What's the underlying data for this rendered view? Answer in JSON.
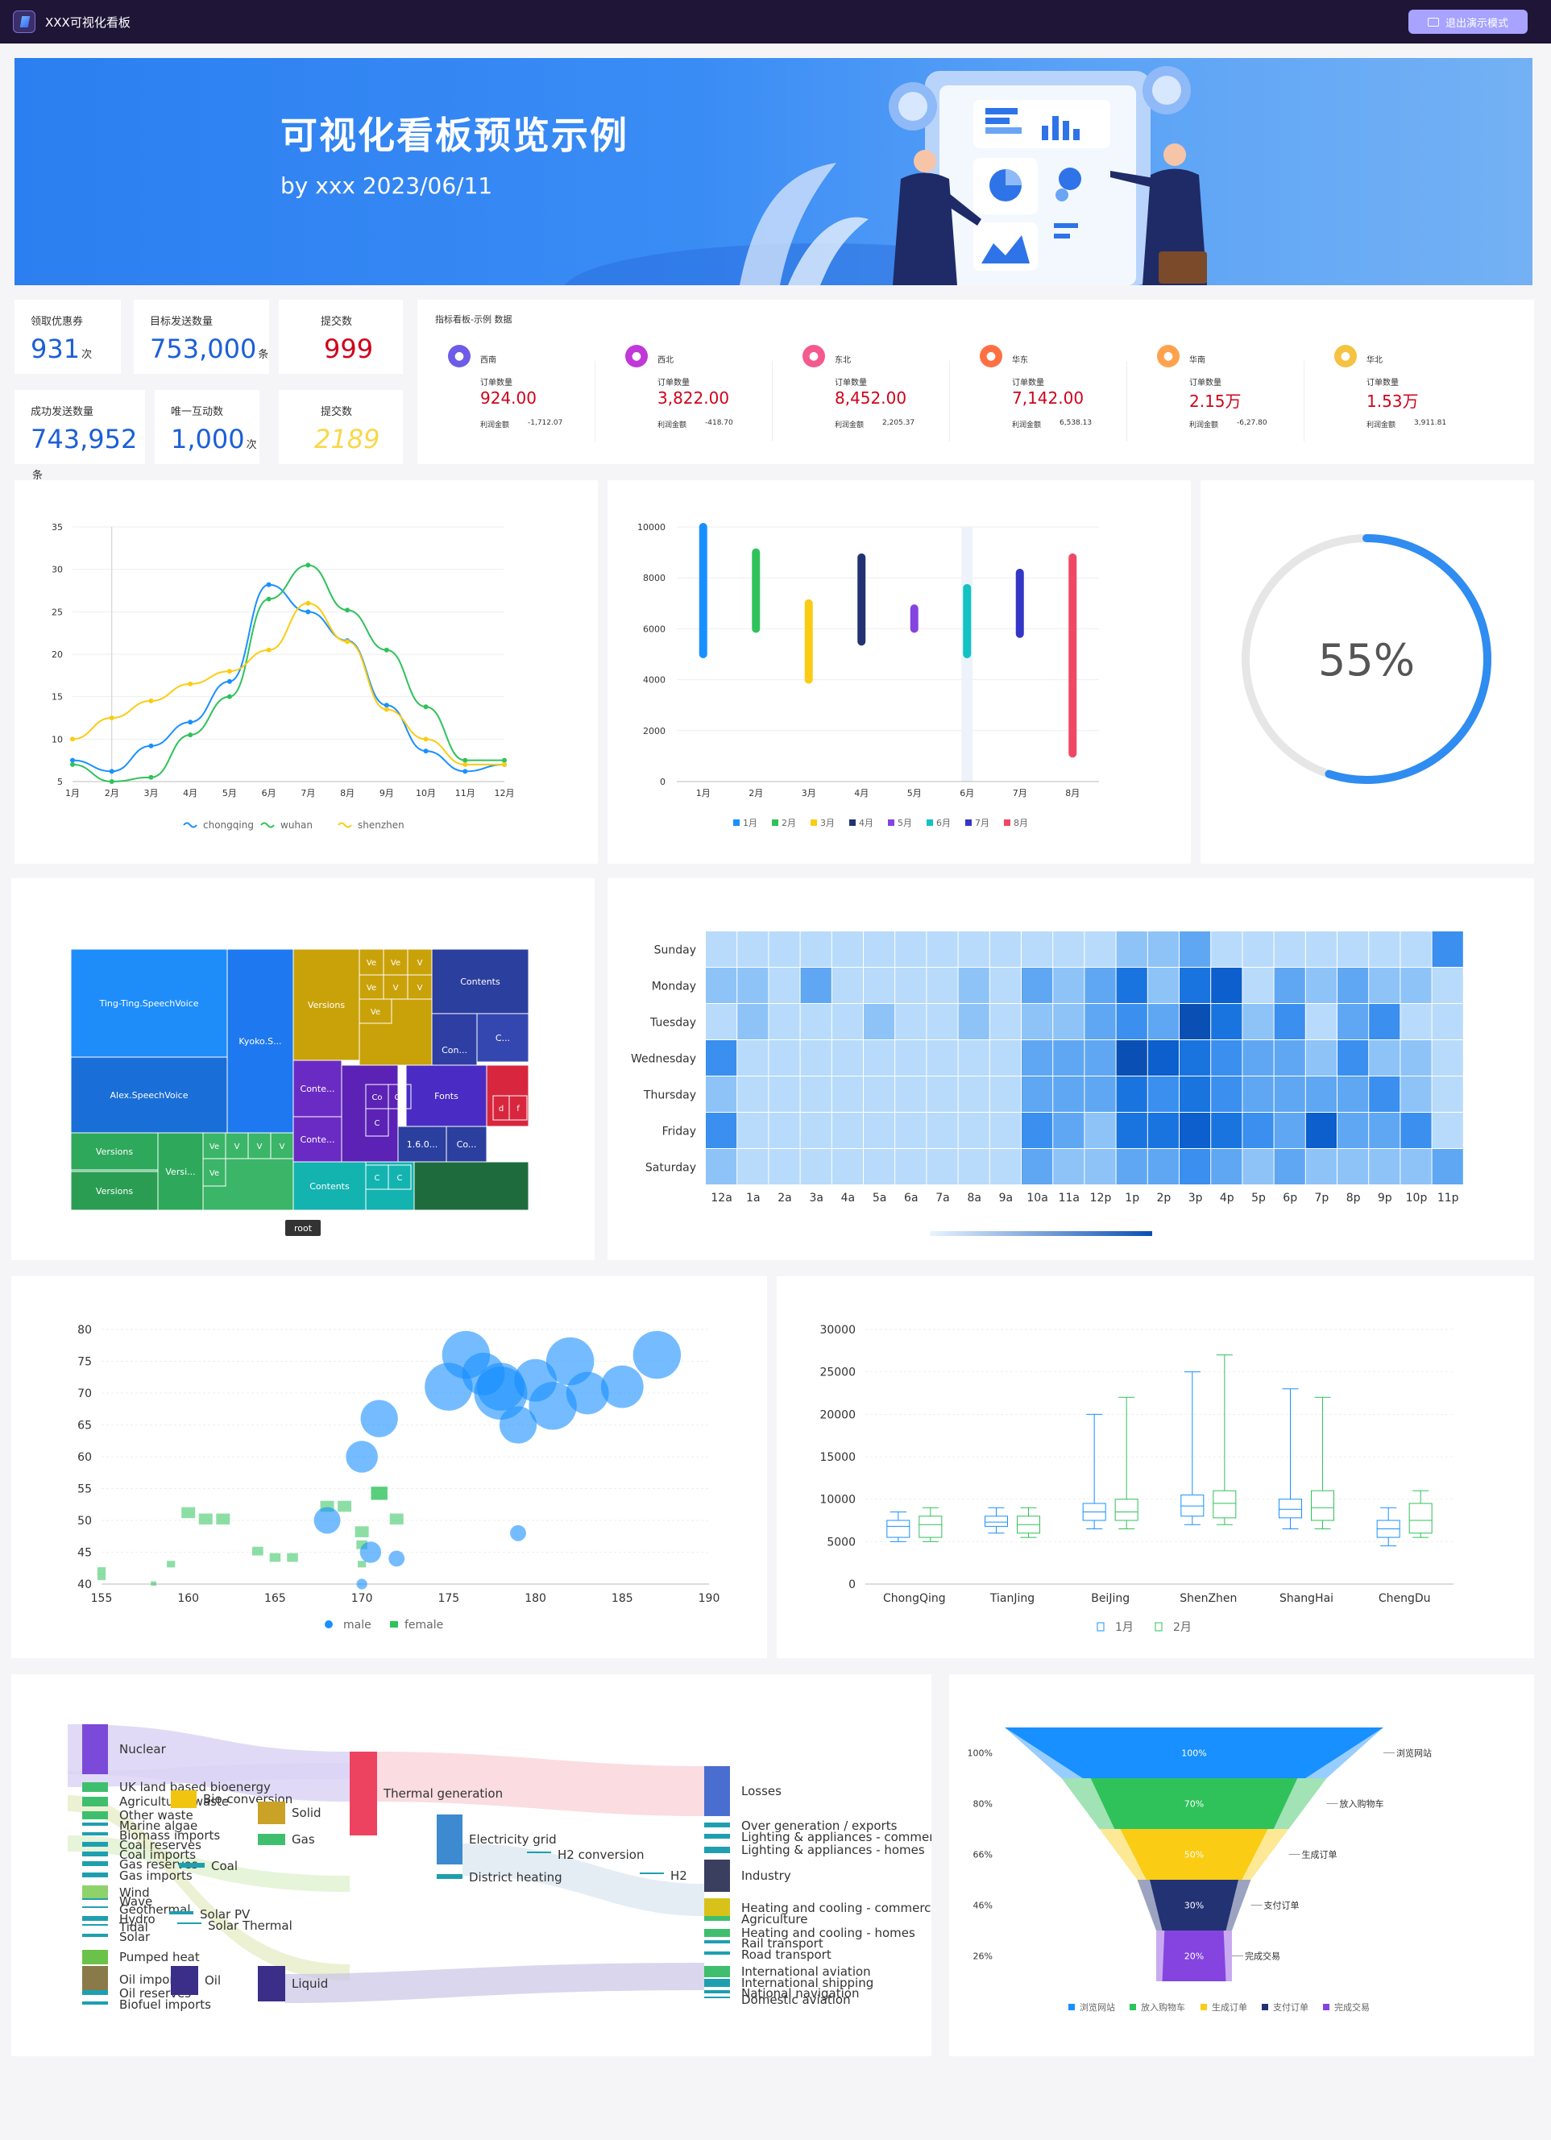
{
  "header": {
    "app_title": "XXX可视化看板",
    "exit_label": "退出演示模式"
  },
  "banner": {
    "title": "可视化看板预览示例",
    "subtitle": "by xxx 2023/06/11"
  },
  "metrics": [
    {
      "label": "领取优惠券",
      "value": "931",
      "unit": "次",
      "color": "#1c5fd8"
    },
    {
      "label": "目标发送数量",
      "value": "753,000",
      "unit": "条",
      "color": "#1c5fd8"
    },
    {
      "label": "提交数",
      "value": "999",
      "unit": "",
      "color": "#d0021b"
    },
    {
      "label": "成功发送数量",
      "value": "743,952",
      "unit": "条",
      "color": "#1c5fd8"
    },
    {
      "label": "唯一互动数",
      "value": "1,000",
      "unit": "次",
      "color": "#1c5fd8"
    },
    {
      "label": "提交数",
      "value": "2189",
      "unit": "",
      "color": "#f7d84a"
    }
  ],
  "regions_panel": {
    "title": "指标看板-示例 数据",
    "order_label": "订单数量",
    "profit_label": "利润金额",
    "items": [
      {
        "name": "西南",
        "orders": "924.00",
        "profit": "-1,712.07",
        "color": "#6c5ce7"
      },
      {
        "name": "西北",
        "orders": "3,822.00",
        "profit": "-418.70",
        "color": "#c039d8"
      },
      {
        "name": "东北",
        "orders": "8,452.00",
        "profit": "2,205.37",
        "color": "#f45a8d"
      },
      {
        "name": "华东",
        "orders": "7,142.00",
        "profit": "6,538.13",
        "color": "#ff7043"
      },
      {
        "name": "华南",
        "orders": "2.15万",
        "profit": "-6,27.80",
        "color": "#ffa24d"
      },
      {
        "name": "华北",
        "orders": "1.53万",
        "profit": "3,911.81",
        "color": "#f5c242"
      }
    ]
  },
  "chart_data": [
    {
      "type": "line",
      "categories": [
        "1月",
        "2月",
        "3月",
        "4月",
        "5月",
        "6月",
        "7月",
        "8月",
        "9月",
        "10月",
        "11月",
        "12月"
      ],
      "series": [
        {
          "name": "chongqing",
          "color": "#1890ff",
          "values": [
            7.5,
            6.2,
            9.2,
            12,
            16.8,
            28.2,
            25,
            21.6,
            14,
            8.6,
            6.2,
            7
          ]
        },
        {
          "name": "wuhan",
          "color": "#2fc25b",
          "values": [
            7,
            5,
            5.5,
            10.5,
            15,
            26.5,
            30.5,
            25.2,
            20.5,
            13.8,
            7.5,
            7.5
          ]
        },
        {
          "name": "shenzhen",
          "color": "#facc14",
          "values": [
            10,
            12.5,
            14.5,
            16.5,
            18,
            20.5,
            26,
            21.5,
            13.5,
            10,
            7,
            7
          ]
        }
      ],
      "ylim": [
        5,
        35
      ],
      "yticks": [
        "5",
        "10",
        "15",
        "20",
        "25",
        "30",
        "35"
      ]
    },
    {
      "type": "bar",
      "categories": [
        "1月",
        "2月",
        "3月",
        "4月",
        "5月",
        "6月",
        "7月",
        "8月"
      ],
      "ranges": [
        [
          5000,
          10000
        ],
        [
          6000,
          9000
        ],
        [
          4000,
          7000
        ],
        [
          5500,
          8800
        ],
        [
          6000,
          6800
        ],
        [
          5000,
          7600
        ],
        [
          5800,
          8200
        ],
        [
          1100,
          8800
        ]
      ],
      "colors": [
        "#1890ff",
        "#2fc25b",
        "#facc14",
        "#223273",
        "#8543e0",
        "#13c2c2",
        "#3436c7",
        "#f04864"
      ],
      "ylim": [
        0,
        10000
      ],
      "yticks": [
        "0",
        "2000",
        "4000",
        "6000",
        "8000",
        "10000"
      ]
    },
    {
      "type": "gauge",
      "value": 55,
      "label": "55%"
    },
    {
      "type": "treemap",
      "labels": [
        "Ting-Ting.SpeechVoice",
        "Kyoko.S...",
        "Alex.SpeechVoice",
        "Versions",
        "Versi...",
        "Ve",
        "Versions",
        "Versions",
        "Ve",
        "V",
        "Ve",
        "Contents",
        "Con...",
        "C...",
        "Conte...",
        "Co",
        "Co",
        "C",
        "Fonts",
        "d",
        "f",
        "Conte...",
        "1.6.0...",
        "Co...",
        "Contents",
        "C",
        "C"
      ],
      "root_label": "root"
    },
    {
      "type": "heatmap",
      "rows": [
        "Sunday",
        "Monday",
        "Tuesday",
        "Wednesday",
        "Thursday",
        "Friday",
        "Saturday"
      ],
      "columns": [
        "12a",
        "1a",
        "2a",
        "3a",
        "4a",
        "5a",
        "6a",
        "7a",
        "8a",
        "9a",
        "10a",
        "11a",
        "12p",
        "1p",
        "2p",
        "3p",
        "4p",
        "5p",
        "6p",
        "7p",
        "8p",
        "9p",
        "10p",
        "11p"
      ],
      "values": [
        [
          1,
          1,
          1,
          1,
          1,
          1,
          1,
          1,
          1,
          1,
          1,
          1,
          1,
          2,
          2,
          3,
          1,
          1,
          1,
          1,
          1,
          1,
          1,
          4
        ],
        [
          2,
          2,
          1,
          3,
          1,
          1,
          1,
          1,
          2,
          1,
          3,
          2,
          3,
          5,
          2,
          5,
          6,
          1,
          3,
          2,
          3,
          2,
          2,
          1
        ],
        [
          1,
          2,
          1,
          1,
          1,
          2,
          1,
          1,
          2,
          1,
          2,
          2,
          3,
          4,
          3,
          7,
          5,
          2,
          4,
          1,
          3,
          4,
          1,
          1
        ],
        [
          4,
          1,
          1,
          1,
          1,
          1,
          1,
          1,
          1,
          1,
          3,
          3,
          3,
          7,
          6,
          5,
          4,
          3,
          3,
          2,
          4,
          2,
          2,
          1
        ],
        [
          2,
          1,
          1,
          1,
          1,
          1,
          1,
          1,
          1,
          1,
          3,
          3,
          3,
          5,
          4,
          5,
          4,
          3,
          3,
          3,
          3,
          4,
          2,
          1
        ],
        [
          4,
          1,
          1,
          1,
          1,
          1,
          1,
          1,
          1,
          1,
          4,
          3,
          2,
          5,
          5,
          6,
          5,
          4,
          3,
          6,
          3,
          3,
          4,
          1
        ],
        [
          2,
          1,
          1,
          1,
          1,
          1,
          1,
          1,
          1,
          1,
          3,
          2,
          2,
          3,
          3,
          4,
          3,
          2,
          3,
          2,
          2,
          2,
          2,
          3
        ]
      ]
    },
    {
      "type": "scatter",
      "series": [
        {
          "name": "male",
          "color": "#1890ff",
          "points": [
            [
              179,
              48
            ],
            [
              170.5,
              45
            ],
            [
              172,
              44
            ],
            [
              170,
              40
            ],
            [
              168,
              50
            ],
            [
              170,
              60
            ],
            [
              171,
              66
            ],
            [
              175,
              71
            ],
            [
              176,
              76
            ],
            [
              177,
              73
            ],
            [
              178,
              70
            ],
            [
              180,
              72
            ],
            [
              181,
              68
            ],
            [
              182,
              75
            ],
            [
              183,
              70
            ],
            [
              185,
              71
            ],
            [
              187,
              76
            ],
            [
              179,
              65
            ],
            [
              178,
              71
            ]
          ],
          "sizes": [
            3,
            4,
            3,
            2,
            5,
            6,
            7,
            9,
            9,
            8,
            10,
            8,
            9,
            9,
            8,
            8,
            9,
            7,
            9
          ]
        },
        {
          "name": "female",
          "color": "#2fc25b",
          "points": [
            [
              155,
              42
            ],
            [
              155,
              41
            ],
            [
              158,
              40
            ],
            [
              159,
              43
            ],
            [
              160,
              51
            ],
            [
              161,
              50
            ],
            [
              162,
              50
            ],
            [
              164,
              45
            ],
            [
              165,
              44
            ],
            [
              166,
              44
            ],
            [
              168,
              52
            ],
            [
              169,
              52
            ],
            [
              170,
              48
            ],
            [
              170,
              46
            ],
            [
              170,
              43
            ],
            [
              171,
              54
            ],
            [
              171,
              54
            ],
            [
              172,
              50
            ]
          ],
          "sizes": [
            3,
            3,
            2,
            3,
            5,
            5,
            5,
            4,
            4,
            4,
            5,
            5,
            5,
            4,
            3,
            6,
            6,
            5
          ]
        }
      ],
      "xlim": [
        155,
        190
      ],
      "ylim": [
        40,
        80
      ],
      "xticks": [
        "155",
        "160",
        "165",
        "170",
        "175",
        "180",
        "185",
        "190"
      ],
      "yticks": [
        "40",
        "45",
        "50",
        "55",
        "60",
        "65",
        "70",
        "75",
        "80"
      ]
    },
    {
      "type": "boxplot",
      "categories": [
        "ChongQing",
        "TianJing",
        "BeiJing",
        "ShenZhen",
        "ShangHai",
        "ChengDu"
      ],
      "series": [
        {
          "name": "1月",
          "color": "#1890ff",
          "boxes": [
            [
              5000,
              5500,
              6800,
              7500,
              8500
            ],
            [
              6000,
              6800,
              7300,
              8000,
              9000
            ],
            [
              6500,
              7500,
              8500,
              9500,
              20000
            ],
            [
              7000,
              8000,
              9200,
              10500,
              25000
            ],
            [
              6500,
              7800,
              8800,
              10000,
              23000
            ],
            [
              4500,
              5500,
              6500,
              7500,
              9000
            ]
          ]
        },
        {
          "name": "2月",
          "color": "#2fc25b",
          "boxes": [
            [
              5000,
              5500,
              7000,
              8000,
              9000
            ],
            [
              5500,
              6000,
              7000,
              8000,
              9000
            ],
            [
              6500,
              7500,
              8500,
              10000,
              22000
            ],
            [
              7000,
              7800,
              9500,
              11000,
              27000
            ],
            [
              6500,
              7500,
              9000,
              11000,
              22000
            ],
            [
              5500,
              6000,
              7500,
              9500,
              11000
            ]
          ]
        }
      ],
      "ylim": [
        0,
        30000
      ],
      "yticks": [
        "0",
        "5000",
        "10000",
        "15000",
        "20000",
        "25000",
        "30000"
      ]
    },
    {
      "type": "sankey",
      "left_nodes": [
        "Nuclear",
        "UK land based bioenergy",
        "Agricultural waste",
        "Other waste",
        "Marine algae",
        "Biomass imports",
        "Coal reserves",
        "Coal imports",
        "Gas reserves",
        "Gas imports",
        "Wind",
        "Wave",
        "Geothermal",
        "Hydro",
        "Tidal",
        "Solar",
        "Pumped heat",
        "Oil imports",
        "Oil reserves",
        "Biofuel imports"
      ],
      "mid_nodes": [
        "Bio-conversion",
        "Solid",
        "Coal",
        "Gas",
        "Thermal generation",
        "Electricity grid",
        "H2 conversion",
        "District heating",
        "H2",
        "Solar PV",
        "Solar Thermal",
        "Oil",
        "Liquid"
      ],
      "right_nodes": [
        "Losses",
        "Over generation / exports",
        "Lighting & appliances - commercial",
        "Lighting & appliances - homes",
        "Industry",
        "Heating and cooling - commercial",
        "Agriculture",
        "Heating and cooling - homes",
        "Rail transport",
        "Road transport",
        "International aviation",
        "International shipping",
        "National navigation",
        "Domestic aviation"
      ]
    },
    {
      "type": "funnel",
      "stages": [
        {
          "name": "浏览网站",
          "value": 100,
          "label": "100%",
          "color": "#1890ff"
        },
        {
          "name": "放入购物车",
          "value": 70,
          "label": "70%",
          "color": "#2fc25b"
        },
        {
          "name": "生成订单",
          "value": 50,
          "label": "50%",
          "color": "#facc14"
        },
        {
          "name": "支付订单",
          "value": 30,
          "label": "30%",
          "color": "#223273"
        },
        {
          "name": "完成交易",
          "value": 20,
          "label": "20%",
          "color": "#8543e0"
        }
      ],
      "left_labels": [
        "100%",
        "80%",
        "66%",
        "46%",
        "26%"
      ]
    }
  ]
}
